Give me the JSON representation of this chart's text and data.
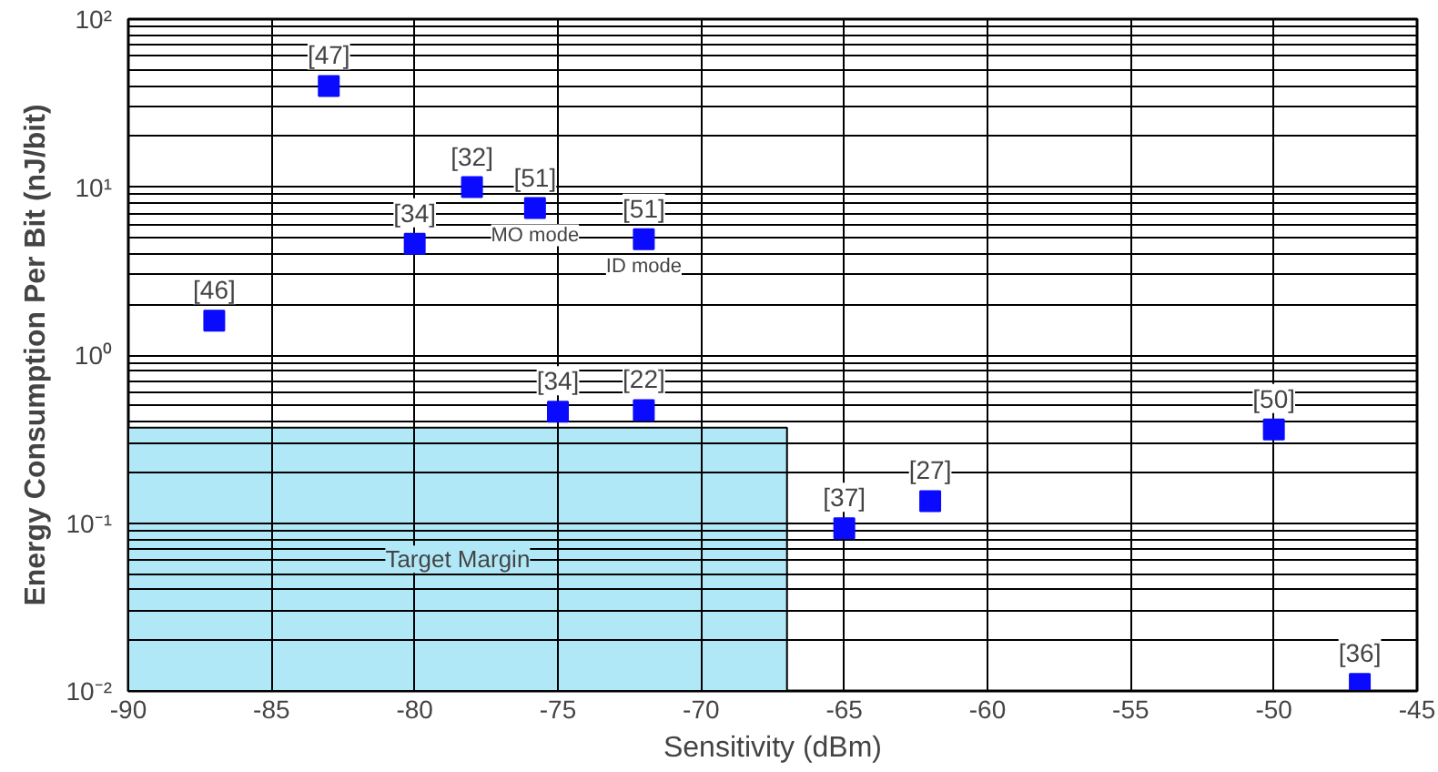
{
  "chart_data": {
    "type": "scatter",
    "xlabel": "Sensitivity (dBm)",
    "ylabel": "Energy Consumption Per Bit (nJ/bit)",
    "log": "y",
    "grid": true,
    "marker": "square",
    "x": [
      -83,
      -78,
      -75.8,
      -80,
      -72,
      -87,
      -75,
      -72,
      -50,
      -65,
      -62,
      -47
    ],
    "series": [
      {
        "color": "#0a0aff",
        "values": [
          40,
          10,
          7.5,
          4.6,
          4.9,
          1.6,
          0.46,
          0.47,
          0.36,
          0.093,
          0.135,
          0.011
        ]
      },
      {
        "type": "area",
        "marker": "none",
        "color": "#b0e8f8",
        "x": [
          -90,
          -67
        ],
        "values": [
          0.37,
          0.37
        ]
      }
    ],
    "xlim": [
      -90,
      -45
    ],
    "xticks": [
      -90,
      -85,
      -80,
      -75,
      -70,
      -65,
      -60,
      -55,
      -50,
      -45
    ],
    "ylim": [
      0.01,
      100
    ],
    "yticks": [
      {
        "value": 0.01,
        "label": "10⁻²"
      },
      {
        "value": 0.1,
        "label": "10⁻¹"
      },
      {
        "value": 1,
        "label": "10⁰"
      },
      {
        "value": 10,
        "label": "10¹"
      },
      {
        "value": 100,
        "label": "10²"
      }
    ],
    "annotations": [
      "Target Margin",
      {
        "text": "[47]",
        "x": -83,
        "y": 40
      },
      {
        "text": "[32]",
        "x": -78,
        "y": 10
      },
      {
        "text": "[51]",
        "x": -75.8,
        "y": 7.5
      },
      {
        "text": "MO mode",
        "x": -75.8,
        "y": 7.5
      },
      {
        "text": "[34]",
        "x": -80,
        "y": 4.6
      },
      {
        "text": "[51]",
        "x": -72,
        "y": 4.9
      },
      {
        "text": "ID mode",
        "x": -72,
        "y": 4.9
      },
      {
        "text": "[46]",
        "x": -87,
        "y": 1.6
      },
      {
        "text": "[34]",
        "x": -75,
        "y": 0.46
      },
      {
        "text": "[22]",
        "x": -72,
        "y": 0.47
      },
      {
        "text": "[50]",
        "x": -50,
        "y": 0.36
      },
      {
        "text": "[37]",
        "x": -65,
        "y": 0.093
      },
      {
        "text": "[27]",
        "x": -62,
        "y": 0.135
      },
      {
        "text": "[36]",
        "x": -47,
        "y": 0.011
      }
    ]
  }
}
